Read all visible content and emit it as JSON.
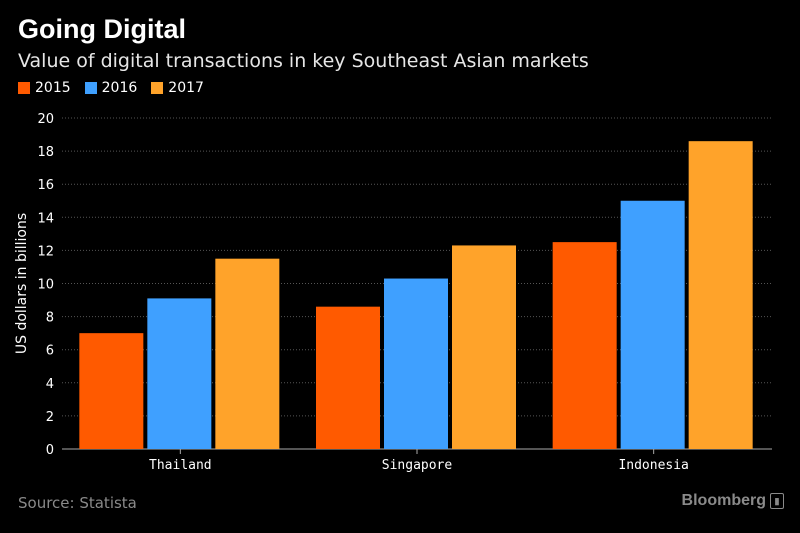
{
  "header": {
    "title": "Going Digital",
    "subtitle": "Value of digital transactions in key Southeast Asian markets"
  },
  "legend": [
    {
      "label": "2015",
      "color": "#ff5a00"
    },
    {
      "label": "2016",
      "color": "#3fa0ff"
    },
    {
      "label": "2017",
      "color": "#ffa32a"
    }
  ],
  "footer": {
    "source": "Source: Statista",
    "brand": "Bloomberg"
  },
  "chart_data": {
    "type": "bar",
    "categories": [
      "Thailand",
      "Singapore",
      "Indonesia"
    ],
    "series": [
      {
        "name": "2015",
        "values": [
          7.0,
          8.6,
          12.5
        ],
        "color": "#ff5a00"
      },
      {
        "name": "2016",
        "values": [
          9.1,
          10.3,
          15.0
        ],
        "color": "#3fa0ff"
      },
      {
        "name": "2017",
        "values": [
          11.5,
          12.3,
          18.6
        ],
        "color": "#ffa32a"
      }
    ],
    "ylabel": "US dollars in billions",
    "ylim": [
      0,
      20
    ],
    "yticks": [
      0,
      2,
      4,
      6,
      8,
      10,
      12,
      14,
      16,
      18,
      20
    ],
    "grid": true,
    "legend_position": "top-left"
  }
}
